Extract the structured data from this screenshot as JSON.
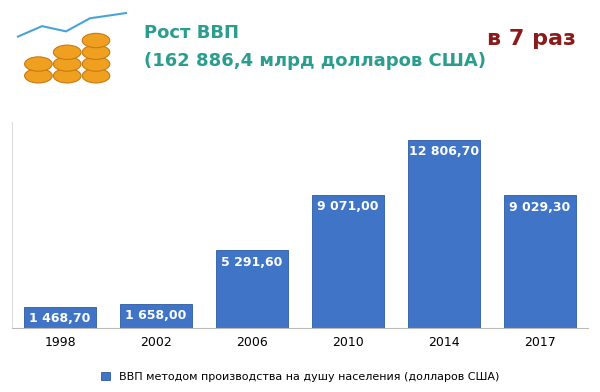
{
  "chart_data": {
    "type": "bar",
    "title": "Рост ВВП",
    "subtitle": "(162 886,4 млрд долларов США)",
    "annotation": "в 7 раз",
    "categories": [
      "1998",
      "2002",
      "2006",
      "2010",
      "2014",
      "2017"
    ],
    "series": [
      {
        "name": "ВВП методом производства на душу населения (долларов США)",
        "color": "#3f74c6",
        "values": [
          1468.7,
          1658.0,
          5291.6,
          9071.0,
          12806.7,
          9029.3
        ],
        "value_labels": [
          "1 468,70",
          "1 658,00",
          "5 291,60",
          "9 071,00",
          "12 806,70",
          "9 029,30"
        ]
      }
    ],
    "ylim": [
      0,
      14000
    ],
    "yticks": [],
    "tick_labels": "x",
    "data_labels": true,
    "legend": "lower center",
    "grid": false
  }
}
